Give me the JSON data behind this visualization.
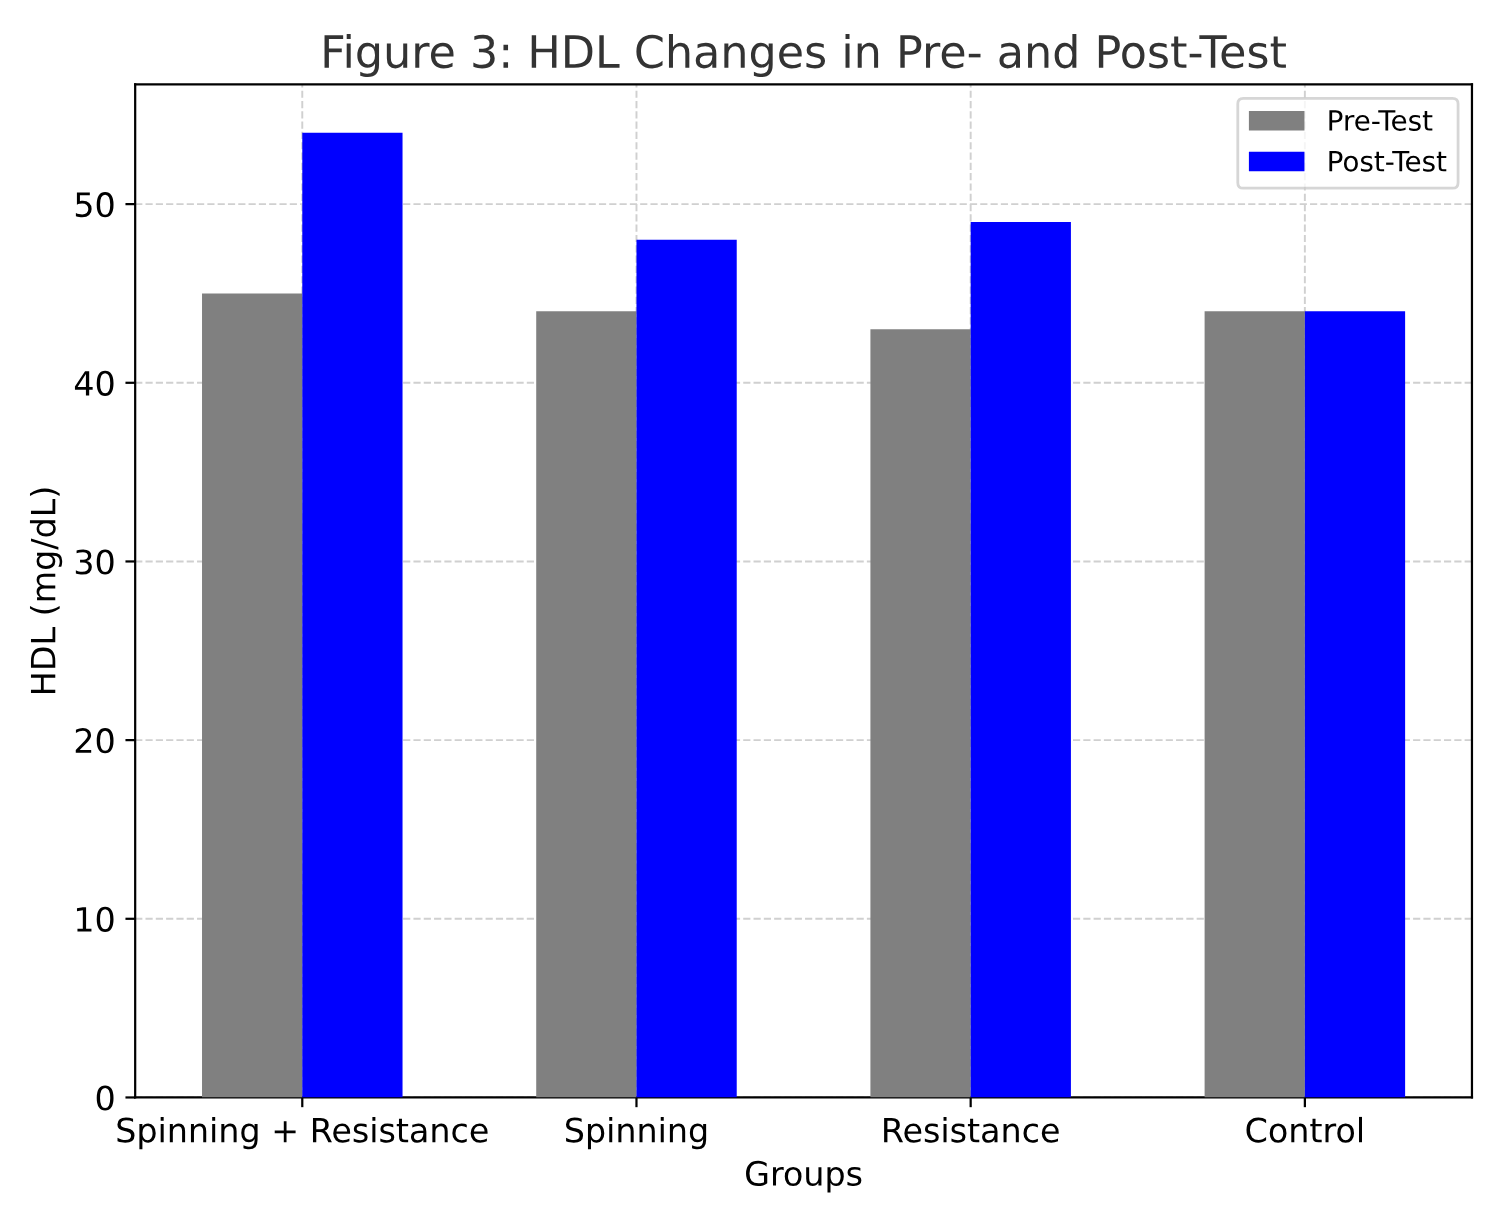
{
  "chart_data": {
    "type": "bar",
    "title": "Figure 3: HDL Changes in Pre- and Post-Test",
    "xlabel": "Groups",
    "ylabel": "HDL (mg/dL)",
    "categories": [
      "Spinning + Resistance",
      "Spinning",
      "Resistance",
      "Control"
    ],
    "series": [
      {
        "name": "Pre-Test",
        "color": "#808080",
        "values": [
          45,
          44,
          43,
          44
        ]
      },
      {
        "name": "Post-Test",
        "color": "#0000ff",
        "values": [
          54,
          48,
          49,
          44
        ]
      }
    ],
    "ylim": [
      0,
      56.7
    ],
    "yticks": [
      0,
      10,
      20,
      30,
      40,
      50
    ],
    "grid": true,
    "legend": "top right"
  }
}
